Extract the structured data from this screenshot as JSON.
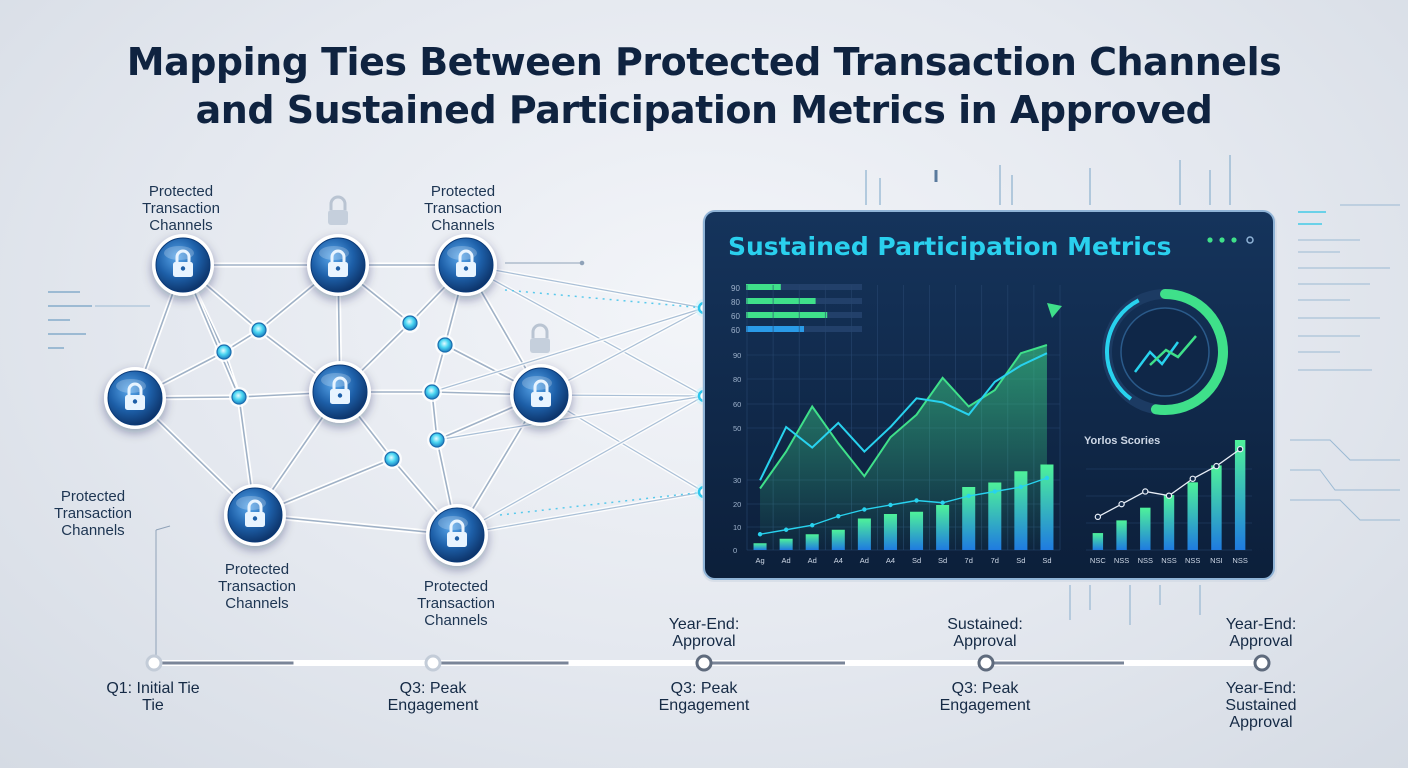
{
  "title": {
    "line1": "Mapping Ties Between Protected Transaction Channels",
    "line2": "and Sustained Participation Metrics in Approved"
  },
  "node_labels": {
    "top_left": [
      "Protected",
      "Transaction",
      "Channels"
    ],
    "top_mid": [
      "Protected",
      "Transaction",
      "Channels"
    ],
    "left": [
      "Protected",
      "Transaction",
      "Channels"
    ],
    "bottom_left": [
      "Protected",
      "Transaction",
      "Channels"
    ],
    "bottom_mid": [
      "Protected",
      "Transaction",
      "Channels"
    ]
  },
  "icons": {
    "node": "lock-icon",
    "floating": "padlock-icon"
  },
  "dashboard": {
    "title": "Sustained Participation Metrics",
    "mini_bars": {
      "labels": [
        "90",
        "80",
        "60",
        "60"
      ],
      "values": [
        0.3,
        0.6,
        0.7,
        0.5
      ]
    },
    "side_chart_title": "Yorlos Scories"
  },
  "chart_data": [
    {
      "type": "bar",
      "categories": [
        "Ag",
        "Ad",
        "Ad",
        "A4",
        "Ad",
        "A4",
        "Sd",
        "Sd",
        "7d",
        "7d",
        "Sd",
        "Sd"
      ],
      "yticks": [
        "0",
        "10",
        "20",
        "30",
        "50",
        "60",
        "80",
        "90"
      ],
      "values": [
        3,
        5,
        7,
        9,
        14,
        16,
        17,
        20,
        28,
        30,
        35,
        38
      ],
      "lines": [
        {
          "values": [
            30,
            48,
            70,
            52,
            36,
            55,
            66,
            84,
            70,
            78,
            96,
            100
          ]
        },
        {
          "values": [
            34,
            60,
            50,
            62,
            48,
            60,
            74,
            72,
            66,
            82,
            90,
            96
          ]
        },
        {
          "values": [
            7,
            9,
            11,
            15,
            18,
            20,
            22,
            21,
            24,
            26,
            28,
            32
          ]
        }
      ]
    },
    {
      "type": "bar",
      "title": "Yorlos Scories",
      "categories": [
        "NSC",
        "NSS",
        "NSS",
        "NSS",
        "NSS",
        "NSI",
        "NSS"
      ],
      "values": [
        8,
        14,
        20,
        26,
        32,
        40,
        52
      ],
      "lines": [
        {
          "values": [
            10,
            16,
            22,
            20,
            28,
            34,
            42
          ]
        }
      ]
    }
  ],
  "timeline": {
    "points": [
      {
        "below": [
          "Q1: Initial Tie",
          "Tie"
        ],
        "above": []
      },
      {
        "below": [
          "Q3: Peak",
          "Engagement"
        ],
        "above": []
      },
      {
        "below": [
          "Q3: Peak",
          "Engagement"
        ],
        "above": [
          "Year-End:",
          "Approval"
        ]
      },
      {
        "below": [
          "Q3: Peak",
          "Engagement"
        ],
        "above": [
          "Sustained:",
          "Approval"
        ]
      },
      {
        "below": [
          "Year-End:",
          "Sustained",
          "Approval"
        ],
        "above": [
          "Year-End:",
          "Approval"
        ]
      }
    ]
  },
  "colors": {
    "title": "#0f2340",
    "node": "#1d5fa8",
    "panel": "#0f2748",
    "accent_green": "#3fe08a",
    "accent_cyan": "#28d2ee",
    "timeline": "#8a94a6"
  }
}
